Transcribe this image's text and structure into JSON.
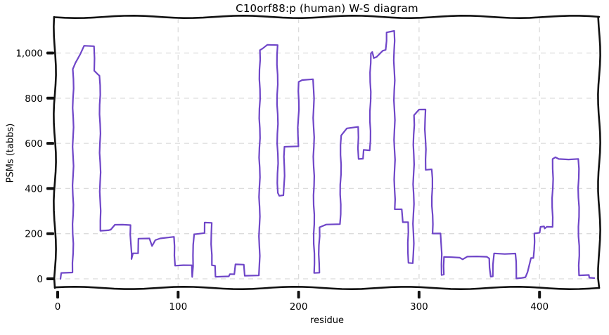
{
  "figure": {
    "background": "#ffffff",
    "text_color": "#000000"
  },
  "chart_data": {
    "type": "line",
    "style": "xkcd-handdrawn-step",
    "title": "C10orf88:p (human) W-S diagram",
    "xlabel": "residue",
    "ylabel": "PSMs (tabbs)",
    "xlim": [
      -5,
      450
    ],
    "ylim": [
      -40,
      1150
    ],
    "x_ticks": [
      0,
      100,
      200,
      300,
      400
    ],
    "x_tick_labels": [
      "0",
      "100",
      "200",
      "300",
      "400"
    ],
    "y_ticks": [
      0,
      200,
      400,
      600,
      800,
      1000
    ],
    "y_tick_labels": [
      "0",
      "200",
      "400",
      "600",
      "800",
      "1,000"
    ],
    "grid": true,
    "grid_color": "#dcdcdc",
    "axis_color": "#111111",
    "line_color": "#6f46c8",
    "legend": "none",
    "series": [
      {
        "name": "PSMs",
        "points": [
          [
            2,
            0
          ],
          [
            3,
            28
          ],
          [
            12.6,
            28
          ],
          [
            12.9,
            928
          ],
          [
            15,
            955
          ],
          [
            22,
            1034
          ],
          [
            30,
            1030
          ],
          [
            30.6,
            923
          ],
          [
            34,
            905
          ],
          [
            35,
            900
          ],
          [
            35.4,
            215
          ],
          [
            42,
            216
          ],
          [
            44,
            218
          ],
          [
            47.5,
            238
          ],
          [
            60.5,
            238
          ],
          [
            61,
            110
          ],
          [
            61.6,
            87
          ],
          [
            62.5,
            113
          ],
          [
            66.5,
            113
          ],
          [
            67,
            178
          ],
          [
            75.8,
            178
          ],
          [
            78.4,
            145
          ],
          [
            81,
            173
          ],
          [
            85,
            181
          ],
          [
            96.3,
            186
          ],
          [
            97.5,
            60
          ],
          [
            111,
            60
          ],
          [
            111.6,
            8
          ],
          [
            113.3,
            198
          ],
          [
            121.6,
            203
          ],
          [
            122,
            248
          ],
          [
            127.5,
            248
          ],
          [
            128,
            58
          ],
          [
            130.4,
            58
          ],
          [
            131,
            11
          ],
          [
            142,
            11
          ],
          [
            143,
            20
          ],
          [
            147,
            20
          ],
          [
            147.6,
            63
          ],
          [
            154.8,
            63
          ],
          [
            155.3,
            15
          ],
          [
            167.4,
            15
          ],
          [
            167.8,
            1014
          ],
          [
            170,
            1020
          ],
          [
            174,
            1035
          ],
          [
            182.3,
            1035
          ],
          [
            182.7,
            380
          ],
          [
            184,
            366
          ],
          [
            187.8,
            370
          ],
          [
            188.3,
            584
          ],
          [
            199.5,
            587
          ],
          [
            200.2,
            871
          ],
          [
            203,
            880
          ],
          [
            212.4,
            884
          ],
          [
            212.9,
            27
          ],
          [
            216.9,
            27
          ],
          [
            217.3,
            230
          ],
          [
            223,
            240
          ],
          [
            234.6,
            242
          ],
          [
            235.2,
            636
          ],
          [
            240,
            668
          ],
          [
            249.2,
            673
          ],
          [
            249.8,
            532
          ],
          [
            253.5,
            532
          ],
          [
            254,
            569
          ],
          [
            259.3,
            569
          ],
          [
            259.8,
            1000
          ],
          [
            261.5,
            1005
          ],
          [
            262.5,
            977
          ],
          [
            265,
            982
          ],
          [
            270,
            1008
          ],
          [
            272.5,
            1014
          ],
          [
            273,
            1093
          ],
          [
            279.3,
            1098
          ],
          [
            279.8,
            308
          ],
          [
            286,
            308
          ],
          [
            286.5,
            251
          ],
          [
            290.7,
            251
          ],
          [
            291.2,
            69
          ],
          [
            295.2,
            69
          ],
          [
            295.7,
            725
          ],
          [
            300,
            748
          ],
          [
            305,
            750
          ],
          [
            305.5,
            485
          ],
          [
            310.7,
            485
          ],
          [
            311.2,
            201
          ],
          [
            318.2,
            201
          ],
          [
            318.7,
            19
          ],
          [
            320.2,
            19
          ],
          [
            320.7,
            95
          ],
          [
            334,
            95
          ],
          [
            336,
            88
          ],
          [
            340,
            100
          ],
          [
            356,
            96
          ],
          [
            358,
            90
          ],
          [
            359.5,
            11
          ],
          [
            361,
            11
          ],
          [
            362.3,
            112
          ],
          [
            380,
            112
          ],
          [
            380.7,
            3
          ],
          [
            385,
            6
          ],
          [
            388,
            8
          ],
          [
            390,
            30
          ],
          [
            393,
            90
          ],
          [
            395.2,
            92
          ],
          [
            395.7,
            201
          ],
          [
            400.4,
            204
          ],
          [
            400.9,
            228
          ],
          [
            403.5,
            231
          ],
          [
            404.5,
            222
          ],
          [
            406,
            230
          ],
          [
            410.6,
            230
          ],
          [
            411.1,
            529
          ],
          [
            413,
            537
          ],
          [
            416,
            530
          ],
          [
            432.3,
            531
          ],
          [
            432.8,
            17
          ],
          [
            440.8,
            17
          ],
          [
            441.3,
            3
          ],
          [
            445.5,
            3
          ]
        ]
      }
    ]
  }
}
